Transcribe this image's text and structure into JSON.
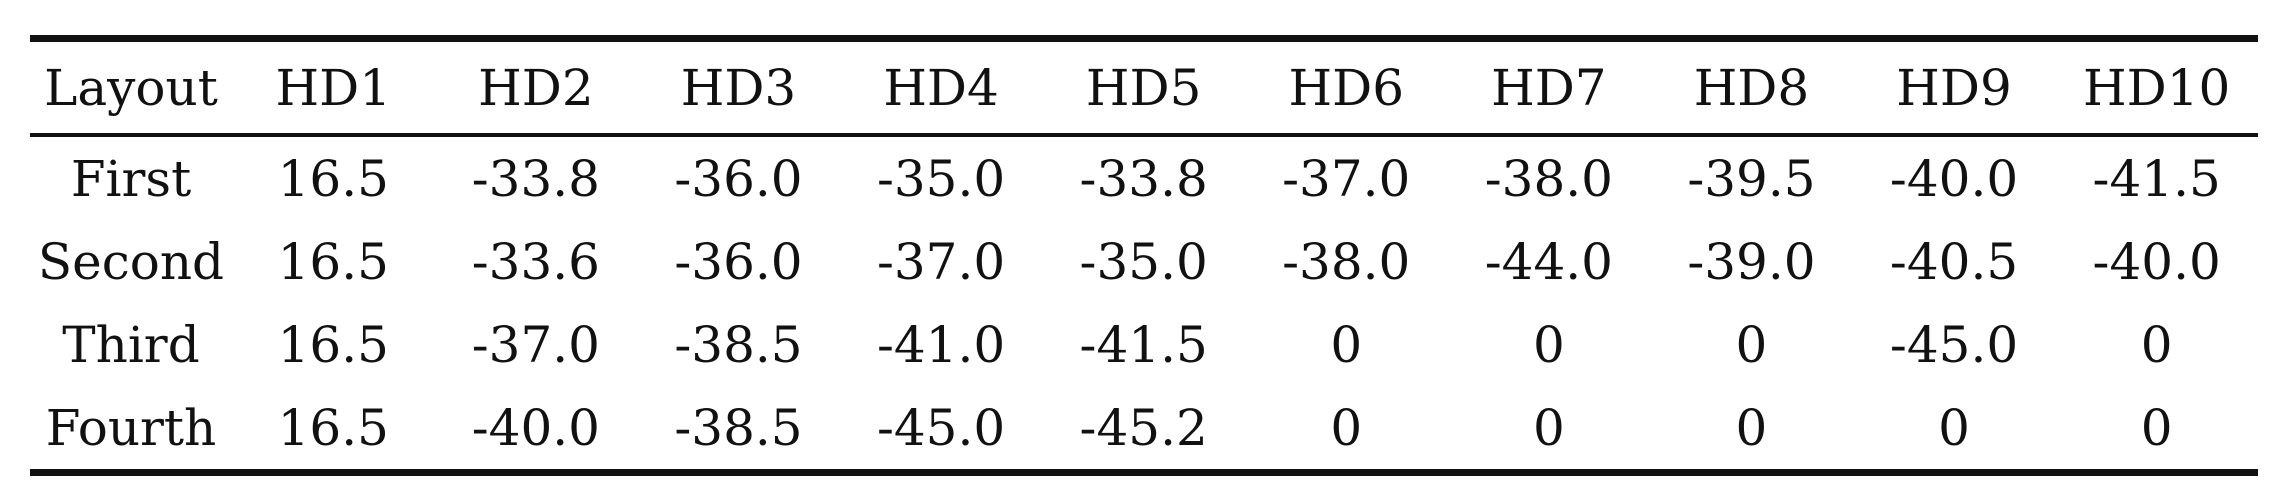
{
  "table": {
    "headers": [
      "Layout",
      "HD1",
      "HD2",
      "HD3",
      "HD4",
      "HD5",
      "HD6",
      "HD7",
      "HD8",
      "HD9",
      "HD10"
    ],
    "rows": [
      [
        "First",
        "16.5",
        "-33.8",
        "-36.0",
        "-35.0",
        "-33.8",
        "-37.0",
        "-38.0",
        "-39.5",
        "-40.0",
        "-41.5"
      ],
      [
        "Second",
        "16.5",
        "-33.6",
        "-36.0",
        "-37.0",
        "-35.0",
        "-38.0",
        "-44.0",
        "-39.0",
        "-40.5",
        "-40.0"
      ],
      [
        "Third",
        "16.5",
        "-37.0",
        "-38.5",
        "-41.0",
        "-41.5",
        "0",
        "0",
        "0",
        "-45.0",
        "0"
      ],
      [
        "Fourth",
        "16.5",
        "-40.0",
        "-38.5",
        "-45.0",
        "-45.2",
        "0",
        "0",
        "0",
        "0",
        "0"
      ]
    ]
  }
}
